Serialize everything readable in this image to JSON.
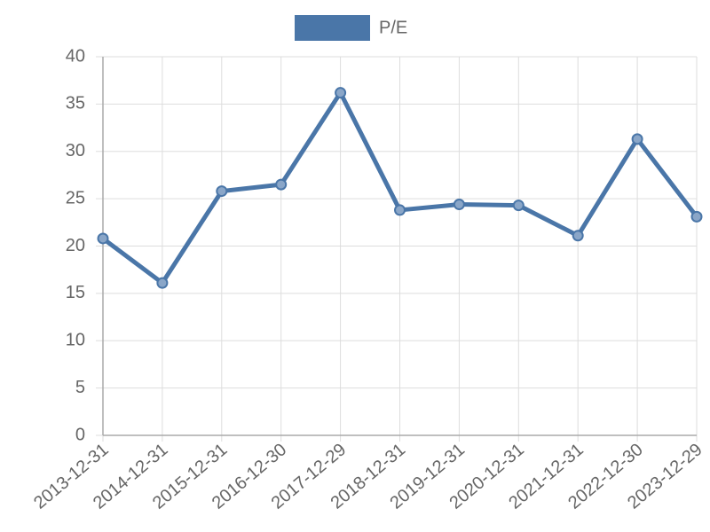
{
  "chart_data": {
    "type": "line",
    "categories": [
      "2013-12-31",
      "2014-12-31",
      "2015-12-31",
      "2016-12-30",
      "2017-12-29",
      "2018-12-31",
      "2019-12-31",
      "2020-12-31",
      "2021-12-31",
      "2022-12-30",
      "2023-12-29"
    ],
    "series": [
      {
        "name": "P/E",
        "color": "#4a76a8",
        "values": [
          20.8,
          16.1,
          25.8,
          26.5,
          36.2,
          23.8,
          24.4,
          24.3,
          21.1,
          31.3,
          23.1
        ]
      }
    ],
    "ylim": [
      0,
      40
    ],
    "yticks": [
      0,
      5,
      10,
      15,
      20,
      25,
      30,
      35,
      40
    ],
    "grid": true,
    "legend": "top"
  }
}
